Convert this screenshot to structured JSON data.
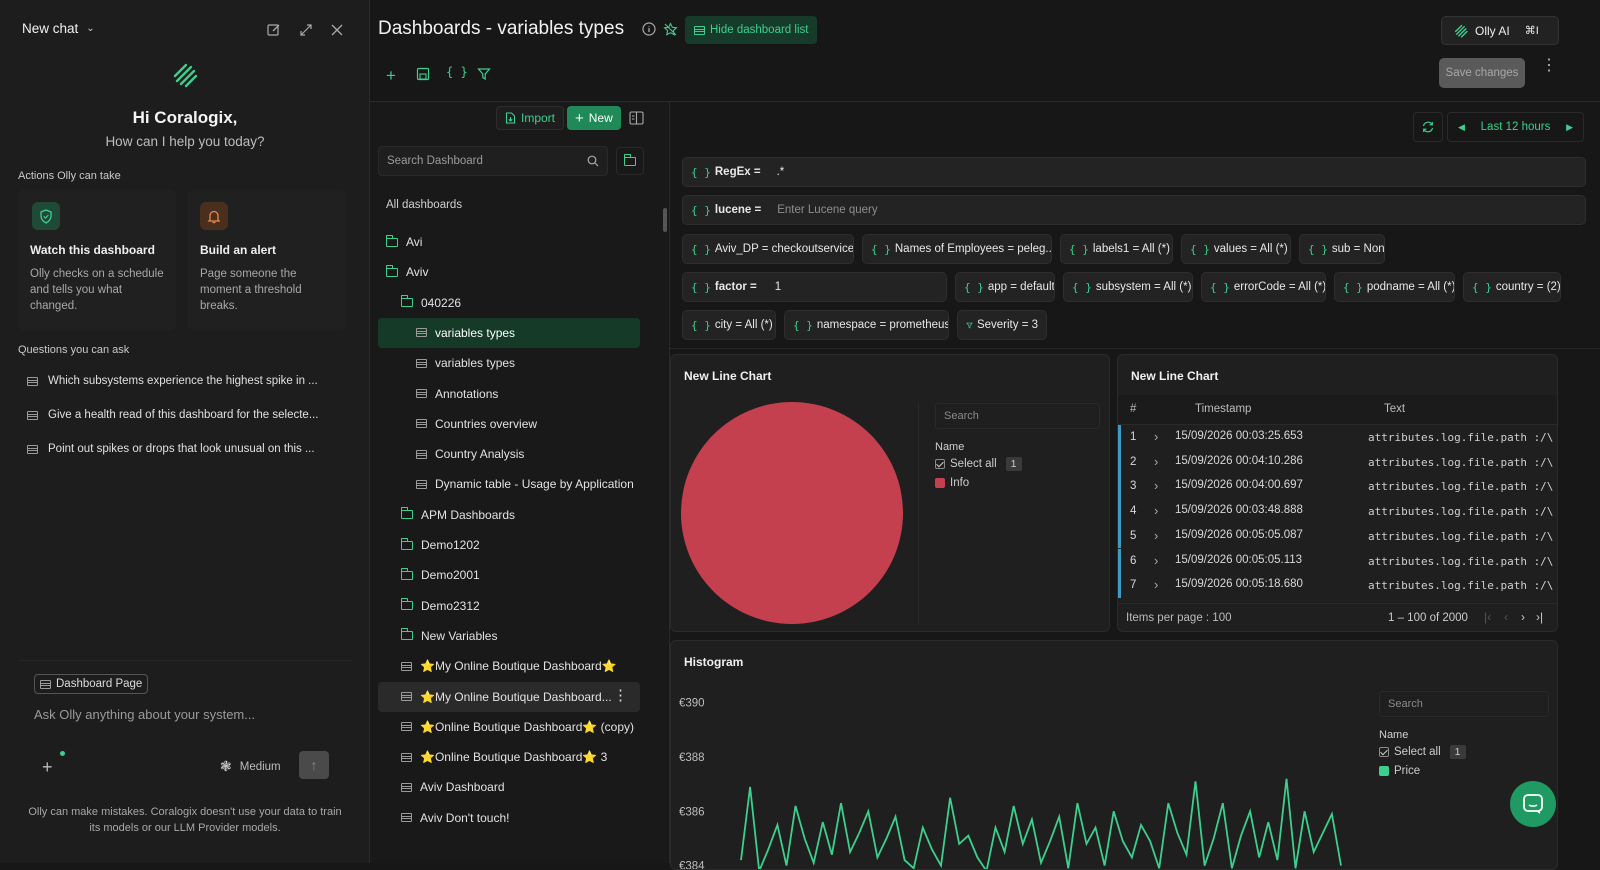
{
  "chat": {
    "title": "New chat",
    "greeting": "Hi Coralogix,",
    "subgreeting": "How can I help you today?",
    "actions_heading": "Actions Olly can take",
    "actions": [
      {
        "title": "Watch this dashboard",
        "desc": "Olly checks on a schedule and tells you what changed.",
        "icon": "shield-icon"
      },
      {
        "title": "Build an alert",
        "desc": "Page someone the moment a threshold breaks.",
        "icon": "bell-icon"
      }
    ],
    "questions_heading": "Questions you can ask",
    "questions": [
      "Which subsystems experience the highest spike in ...",
      "Give a health read of this dashboard for the selecte...",
      "Point out spikes or drops that look unusual on this ..."
    ],
    "context_chip": "Dashboard Page",
    "input_placeholder": "Ask Olly anything about your system...",
    "model": "Medium",
    "disclaimer": "Olly can make mistakes. Coralogix doesn't use your data to train its models or our LLM Provider models."
  },
  "header": {
    "title": "Dashboards - variables types",
    "hide_list": "Hide dashboard list",
    "olly_button": "Olly AI",
    "olly_shortcut": "⌘I",
    "save": "Save changes",
    "time_range": "Last 12 hours"
  },
  "dlist": {
    "import": "Import",
    "new": "New",
    "search_placeholder": "Search Dashboard",
    "all_label": "All dashboards",
    "items": [
      {
        "label": "Avi",
        "type": "folder",
        "depth": 0
      },
      {
        "label": "Aviv",
        "type": "folder",
        "depth": 0
      },
      {
        "label": "040226",
        "type": "folder",
        "depth": 1
      },
      {
        "label": "variables types",
        "type": "dash",
        "depth": 2,
        "selected": true
      },
      {
        "label": "variables types",
        "type": "dash",
        "depth": 2
      },
      {
        "label": "Annotations",
        "type": "dash",
        "depth": 2
      },
      {
        "label": "Countries overview",
        "type": "dash",
        "depth": 2
      },
      {
        "label": "Country Analysis",
        "type": "dash",
        "depth": 2
      },
      {
        "label": "Dynamic table - Usage by Application",
        "type": "dash",
        "depth": 2
      },
      {
        "label": "APM Dashboards",
        "type": "folder",
        "depth": 1
      },
      {
        "label": "Demo1202",
        "type": "folder",
        "depth": 1
      },
      {
        "label": "Demo2001",
        "type": "folder",
        "depth": 1
      },
      {
        "label": "Demo2312",
        "type": "folder",
        "depth": 1
      },
      {
        "label": "New Variables",
        "type": "folder",
        "depth": 1
      },
      {
        "label": "⭐My Online Boutique Dashboard⭐",
        "type": "dash",
        "depth": 1
      },
      {
        "label": "⭐My Online Boutique Dashboard...",
        "type": "dash",
        "depth": 1,
        "hover": true
      },
      {
        "label": "⭐Online Boutique Dashboard⭐ (copy)",
        "type": "dash",
        "depth": 1
      },
      {
        "label": "⭐Online Boutique Dashboard⭐ 3",
        "type": "dash",
        "depth": 1
      },
      {
        "label": "Aviv Dashboard",
        "type": "dash",
        "depth": 1
      },
      {
        "label": "Aviv Don't touch!",
        "type": "dash",
        "depth": 1
      }
    ]
  },
  "vars": {
    "regex_label": "RegEx =",
    "regex_value": ".*",
    "lucene_label": "lucene =",
    "lucene_placeholder": "Enter Lucene query",
    "row3": [
      "Aviv_DP = checkoutservice",
      "Names of Employees = peleg...",
      "labels1 = All (*)",
      "values = All (*)",
      "sub = None"
    ],
    "factor_label": "factor =",
    "factor_value": "1",
    "row4": [
      "app = default",
      "subsystem = All (*)",
      "errorCode = All (*)",
      "podname = All (*)",
      "country = (2)"
    ],
    "row5": [
      "city = All (*)",
      "namespace = prometheus"
    ],
    "filter": "Severity = 3"
  },
  "pie_panel": {
    "title": "New Line Chart",
    "search_placeholder": "Search",
    "legend_header": "Name",
    "select_all": "Select all",
    "select_count": "1",
    "legend_items": [
      {
        "name": "Info",
        "color": "#c4404f"
      }
    ]
  },
  "table_panel": {
    "title": "New Line Chart",
    "columns": [
      "#",
      "Timestamp",
      "Text"
    ],
    "rows": [
      {
        "n": "1",
        "ts": "15/09/2026 00:03:25.653",
        "text": "attributes.log.file.path :/\\"
      },
      {
        "n": "2",
        "ts": "15/09/2026 00:04:10.286",
        "text": "attributes.log.file.path :/\\"
      },
      {
        "n": "3",
        "ts": "15/09/2026 00:04:00.697",
        "text": "attributes.log.file.path :/\\"
      },
      {
        "n": "4",
        "ts": "15/09/2026 00:03:48.888",
        "text": "attributes.log.file.path :/\\"
      },
      {
        "n": "5",
        "ts": "15/09/2026 00:05:05.087",
        "text": "attributes.log.file.path :/\\"
      },
      {
        "n": "6",
        "ts": "15/09/2026 00:05:05.113",
        "text": "attributes.log.file.path :/\\"
      },
      {
        "n": "7",
        "ts": "15/09/2026 00:05:18.680",
        "text": "attributes.log.file.path :/\\"
      }
    ],
    "items_per_page": "Items per page : 100",
    "range": "1 – 100 of 2000"
  },
  "hist_panel": {
    "title": "Histogram",
    "search_placeholder": "Search",
    "legend_header": "Name",
    "select_all": "Select all",
    "select_count": "1",
    "legend_items": [
      {
        "name": "Price",
        "color": "#3ecf8e"
      }
    ]
  },
  "chart_data": [
    {
      "type": "pie",
      "title": "New Line Chart",
      "series": [
        {
          "name": "Info",
          "values": [
            100
          ]
        }
      ]
    },
    {
      "type": "line",
      "title": "Histogram",
      "yticks": [
        "€390",
        "€388",
        "€386",
        "€384"
      ],
      "series": [
        {
          "name": "Price",
          "values": [
            384.2,
            386.9,
            383.8,
            384.6,
            385.5,
            384.0,
            386.2,
            385.0,
            384.1,
            385.6,
            384.4,
            386.3,
            384.5,
            385.2,
            386.0,
            384.3,
            385.0,
            385.8,
            384.2,
            383.9,
            385.4,
            384.6,
            384.0,
            386.5,
            384.8,
            385.1,
            384.3,
            383.8,
            385.4,
            384.5,
            386.2,
            384.8,
            385.7,
            384.1,
            384.9,
            385.8,
            383.9,
            386.3,
            384.8,
            385.4,
            384.0,
            386.0,
            384.9,
            384.3,
            385.5,
            384.9,
            383.9,
            386.3,
            385.2,
            384.4,
            387.1,
            384.0,
            385.0,
            386.3,
            383.9,
            385.1,
            386.0,
            384.3,
            385.6,
            384.2,
            387.2,
            383.9,
            386.0,
            384.5,
            385.2,
            385.9,
            384.0
          ]
        }
      ],
      "ylim": [
        383.8,
        390.8
      ]
    }
  ]
}
